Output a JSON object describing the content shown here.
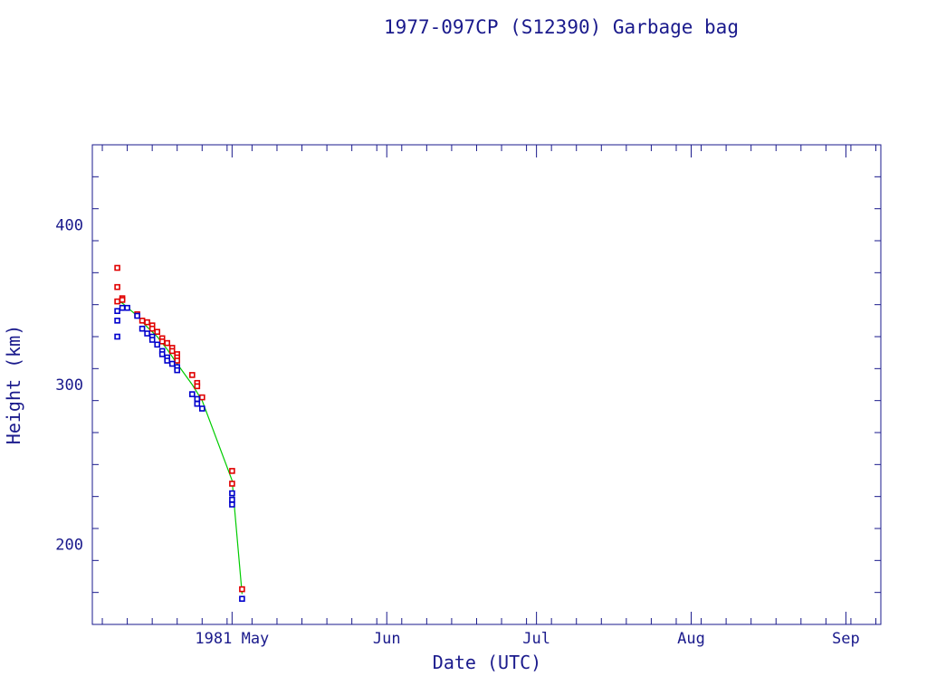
{
  "chart_data": {
    "type": "scatter",
    "title": "1977-097CP (S12390) Garbage bag",
    "xlabel": "Date (UTC)",
    "ylabel": "Height (km)",
    "x_axis": {
      "type": "date",
      "range": [
        "1981-04-03",
        "1981-09-08"
      ],
      "major_ticks": [
        {
          "date": "1981-05-01",
          "label": "1981 May"
        },
        {
          "date": "1981-06-01",
          "label": "Jun"
        },
        {
          "date": "1981-07-01",
          "label": "Jul"
        },
        {
          "date": "1981-08-01",
          "label": "Aug"
        },
        {
          "date": "1981-09-01",
          "label": "Sep"
        }
      ]
    },
    "y_axis": {
      "range": [
        150,
        450
      ],
      "major_ticks": [
        200,
        300,
        400
      ],
      "minor_step": 20
    },
    "grid": false,
    "colors": {
      "axis": "#1a1a8c",
      "apogee": "#e00000",
      "perigee": "#0000cc",
      "mean": "#00cc00"
    },
    "series": [
      {
        "role": "apogee",
        "points": [
          [
            "1981-04-08",
            373
          ],
          [
            "1981-04-08",
            361
          ],
          [
            "1981-04-08",
            352
          ],
          [
            "1981-04-09",
            354
          ],
          [
            "1981-04-09",
            353
          ],
          [
            "1981-04-12",
            344
          ],
          [
            "1981-04-13",
            340
          ],
          [
            "1981-04-14",
            339
          ],
          [
            "1981-04-15",
            337
          ],
          [
            "1981-04-15",
            335
          ],
          [
            "1981-04-16",
            333
          ],
          [
            "1981-04-17",
            329
          ],
          [
            "1981-04-17",
            327
          ],
          [
            "1981-04-18",
            326
          ],
          [
            "1981-04-19",
            323
          ],
          [
            "1981-04-19",
            321
          ],
          [
            "1981-04-20",
            319
          ],
          [
            "1981-04-20",
            317
          ],
          [
            "1981-04-20",
            315
          ],
          [
            "1981-04-23",
            306
          ],
          [
            "1981-04-24",
            301
          ],
          [
            "1981-04-24",
            299
          ],
          [
            "1981-04-25",
            292
          ],
          [
            "1981-05-01",
            246
          ],
          [
            "1981-05-01",
            238
          ],
          [
            "1981-05-03",
            172
          ]
        ]
      },
      {
        "role": "perigee",
        "points": [
          [
            "1981-04-08",
            330
          ],
          [
            "1981-04-08",
            340
          ],
          [
            "1981-04-08",
            346
          ],
          [
            "1981-04-09",
            348
          ],
          [
            "1981-04-10",
            348
          ],
          [
            "1981-04-12",
            343
          ],
          [
            "1981-04-13",
            335
          ],
          [
            "1981-04-14",
            332
          ],
          [
            "1981-04-15",
            330
          ],
          [
            "1981-04-15",
            328
          ],
          [
            "1981-04-16",
            325
          ],
          [
            "1981-04-17",
            321
          ],
          [
            "1981-04-17",
            319
          ],
          [
            "1981-04-18",
            317
          ],
          [
            "1981-04-18",
            315
          ],
          [
            "1981-04-19",
            313
          ],
          [
            "1981-04-20",
            311
          ],
          [
            "1981-04-20",
            309
          ],
          [
            "1981-04-23",
            294
          ],
          [
            "1981-04-24",
            291
          ],
          [
            "1981-04-24",
            288
          ],
          [
            "1981-04-25",
            285
          ],
          [
            "1981-05-01",
            232
          ],
          [
            "1981-05-01",
            228
          ],
          [
            "1981-05-01",
            225
          ],
          [
            "1981-05-03",
            166
          ]
        ]
      },
      {
        "role": "mean",
        "points": [
          [
            "1981-04-08",
            352
          ],
          [
            "1981-04-09",
            351
          ],
          [
            "1981-04-12",
            343
          ],
          [
            "1981-04-14",
            336
          ],
          [
            "1981-04-16",
            330
          ],
          [
            "1981-04-18",
            322
          ],
          [
            "1981-04-20",
            313
          ],
          [
            "1981-04-23",
            300
          ],
          [
            "1981-04-25",
            290
          ],
          [
            "1981-05-01",
            240
          ],
          [
            "1981-05-03",
            169
          ]
        ]
      }
    ]
  }
}
